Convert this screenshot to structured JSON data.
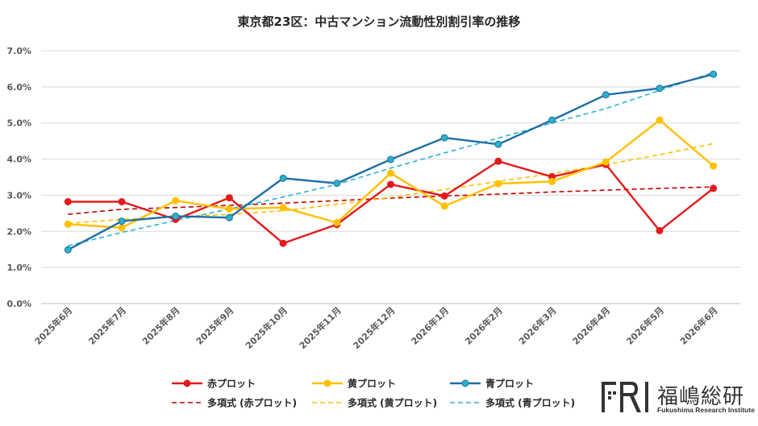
{
  "chart_data": {
    "type": "line",
    "title": "東京都23区：中古マンション流動性別割引率の推移",
    "categories": [
      "2025年6月",
      "2025年7月",
      "2025年8月",
      "2025年9月",
      "2025年10月",
      "2025年11月",
      "2025年12月",
      "2026年1月",
      "2026年2月",
      "2026年3月",
      "2026年4月",
      "2026年5月",
      "2026年6月"
    ],
    "ylim": [
      0,
      7
    ],
    "yticks": [
      "0.0%",
      "1.0%",
      "2.0%",
      "3.0%",
      "4.0%",
      "5.0%",
      "6.0%",
      "7.0%"
    ],
    "grid": true,
    "legend_position": "bottom",
    "series": [
      {
        "name": "赤プロット",
        "color": "#e31a1c",
        "values": [
          2.82,
          2.82,
          2.33,
          2.93,
          1.67,
          2.19,
          3.3,
          2.98,
          3.94,
          3.51,
          3.85,
          2.02,
          3.19
        ]
      },
      {
        "name": "黄プロット",
        "color": "#ffc000",
        "values": [
          2.2,
          2.1,
          2.85,
          2.62,
          2.66,
          2.24,
          3.61,
          2.7,
          3.32,
          3.38,
          3.92,
          5.08,
          3.81
        ]
      },
      {
        "name": "青プロット",
        "color": "#1f6ea8",
        "marker_fill": "#2ab3c6",
        "values": [
          1.49,
          2.28,
          2.42,
          2.38,
          3.47,
          3.33,
          3.99,
          4.59,
          4.41,
          5.08,
          5.78,
          5.96,
          6.35
        ]
      }
    ],
    "trendlines": [
      {
        "name": "多項式 (赤プロット)",
        "color": "#c00000",
        "values": [
          2.47,
          2.61,
          2.66,
          2.72,
          2.78,
          2.85,
          2.92,
          2.98,
          3.03,
          3.09,
          3.14,
          3.19,
          3.23
        ]
      },
      {
        "name": "多項式 (黄プロット)",
        "color": "#ffc000",
        "values": [
          2.22,
          2.33,
          2.4,
          2.47,
          2.57,
          2.75,
          2.94,
          3.16,
          3.38,
          3.6,
          3.85,
          4.12,
          4.43
        ]
      },
      {
        "name": "多項式 (青プロット)",
        "color": "#2ab3d0",
        "values": [
          1.6,
          1.97,
          2.3,
          2.62,
          2.95,
          3.3,
          3.75,
          4.17,
          4.58,
          5.0,
          5.4,
          5.9,
          6.4
        ]
      }
    ]
  },
  "logo": {
    "mark": "FRI",
    "name": "福嶋総研",
    "subtitle": "Fukushima Research Institute"
  }
}
